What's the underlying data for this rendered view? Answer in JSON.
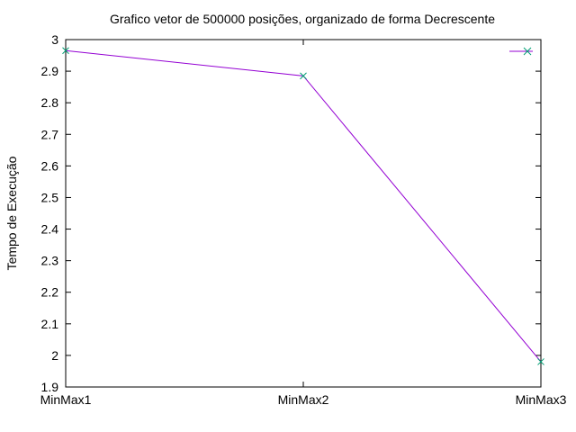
{
  "chart_data": {
    "type": "line",
    "title": "Grafico vetor de 500000 posições, organizado de forma Decrescente",
    "xlabel": "",
    "ylabel": "Tempo de Execução",
    "categories": [
      "MinMax1",
      "MinMax2",
      "MinMax3"
    ],
    "ylim": [
      1.9,
      3.0
    ],
    "yticks": [
      1.9,
      2.0,
      2.1,
      2.2,
      2.3,
      2.4,
      2.5,
      2.6,
      2.7,
      2.8,
      2.9,
      3.0
    ],
    "yticks_labels": [
      "1.9",
      "2",
      "2.1",
      "2.2",
      "2.3",
      "2.4",
      "2.5",
      "2.6",
      "2.7",
      "2.8",
      "2.9",
      "3"
    ],
    "grid": false,
    "legend": "top-right",
    "series": [
      {
        "values": [
          2.965,
          2.885,
          1.98
        ],
        "color": "#9400d3",
        "marker": "x",
        "marker_color": "#009e73"
      }
    ]
  }
}
